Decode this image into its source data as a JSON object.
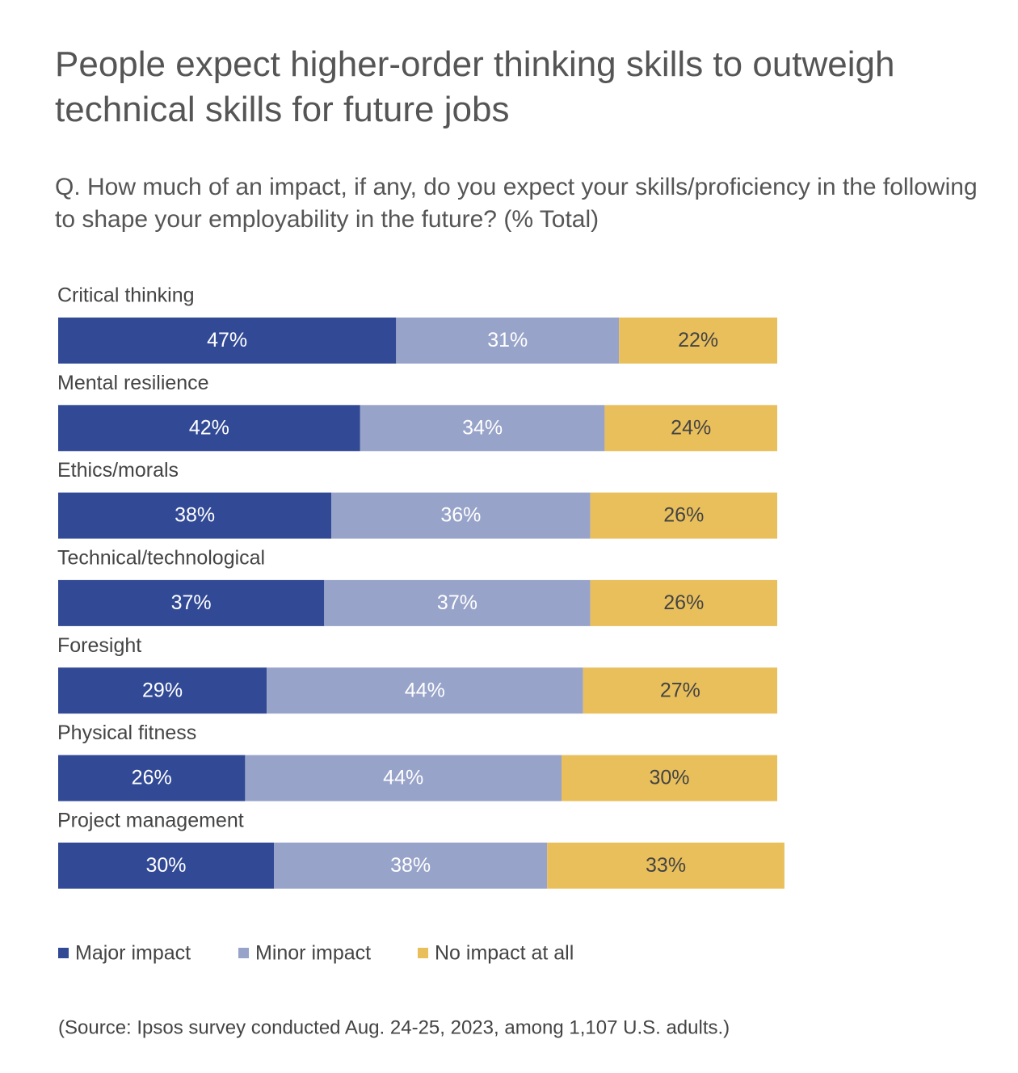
{
  "chart_data": {
    "type": "stacked_bar_horizontal",
    "title": "People expect higher-order thinking skills to outweigh technical skills for future jobs",
    "subtitle": "Q. How much of an impact, if any, do you expect your skills/proficiency in the following to shape your employability in the future? (% Total)",
    "categories": [
      "Critical thinking",
      "Mental resilience",
      "Ethics/morals",
      "Technical/technological",
      "Foresight",
      "Physical fitness",
      "Project management"
    ],
    "series": [
      {
        "name": "Major impact",
        "color": "#324a96",
        "values": [
          47,
          42,
          38,
          37,
          29,
          26,
          30
        ],
        "value_labels": [
          "47%",
          "42%",
          "38%",
          "37%",
          "29%",
          "26%",
          "30%"
        ]
      },
      {
        "name": "Minor impact",
        "color": "#98a3c9",
        "values": [
          31,
          34,
          36,
          37,
          44,
          44,
          38
        ],
        "value_labels": [
          "31%",
          "34%",
          "36%",
          "37%",
          "44%",
          "44%",
          "38%"
        ]
      },
      {
        "name": "No impact at all",
        "color": "#e9bf5c",
        "values": [
          22,
          24,
          26,
          26,
          27,
          30,
          33
        ],
        "value_labels": [
          "22%",
          "24%",
          "26%",
          "26%",
          "27%",
          "30%",
          "33%"
        ]
      }
    ],
    "source": "(Source: Ipsos survey conducted Aug. 24-25, 2023, among 1,107 U.S. adults.)"
  }
}
